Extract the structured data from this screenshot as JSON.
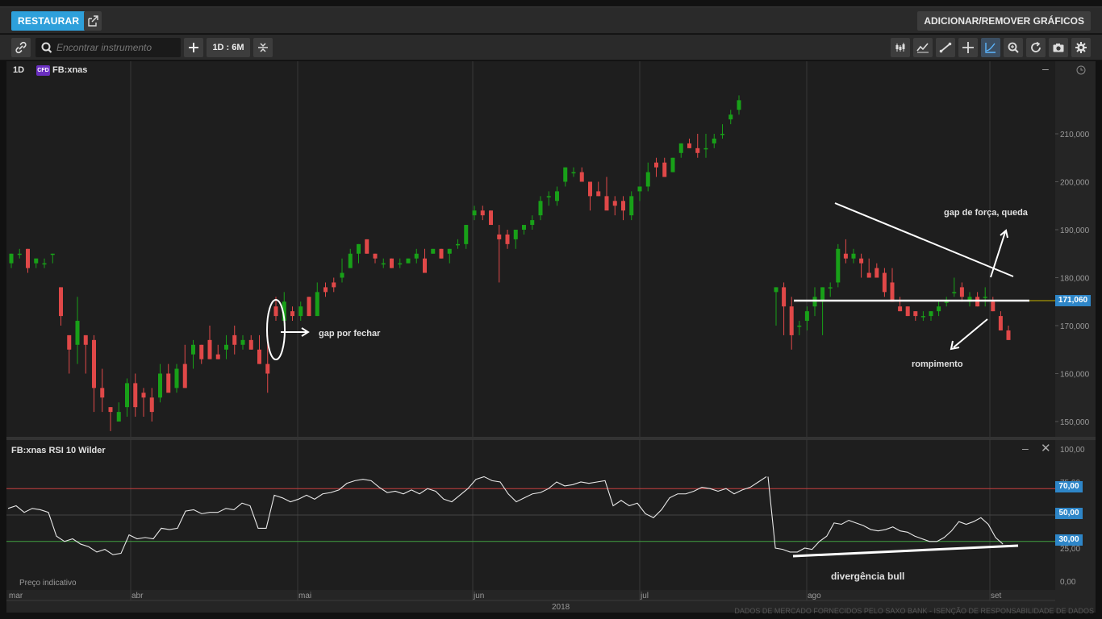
{
  "topbar": {
    "restore_label": "RESTAURAR",
    "add_remove_label": "ADICIONAR/REMOVER GRÁFICOS"
  },
  "toolbar": {
    "search_placeholder": "Encontrar instrumento",
    "period_label": "1D : 6M",
    "right_icons": [
      "candlestick-icon",
      "indicator-icon",
      "line-tool-icon",
      "crosshair-icon",
      "chart-type-icon",
      "zoom-icon",
      "refresh-icon",
      "camera-icon",
      "settings-icon"
    ]
  },
  "main_chart": {
    "interval": "1D",
    "badge": "CFD",
    "instrument": "FB:xnas",
    "price_ticks": [
      "210,000",
      "200,000",
      "190,000",
      "180,000",
      "170,000",
      "160,000",
      "150,000"
    ],
    "last_price": "171,060",
    "annotations": {
      "gap_open": "gap por fechar",
      "gap_strength": "gap de força, queda",
      "breakout": "rompimento"
    }
  },
  "rsi_panel": {
    "title": "FB:xnas  RSI 10 Wilder",
    "ticks": [
      "100,00",
      "75,00",
      "50,00",
      "25,00",
      "0,00"
    ],
    "level_high": "70,00",
    "level_mid": "50,00",
    "level_low": "30,00",
    "annotation": "divergência bull",
    "note": "Preço indicativo"
  },
  "x_axis": {
    "months": [
      "mar",
      "abr",
      "mai",
      "jun",
      "jul",
      "ago",
      "set"
    ],
    "year": "2018"
  },
  "footer": "DADOS DE MERCADO FORNECIDOS PELO SAXO BANK - ISENÇÃO DE RESPONSABILIDADE DE DADOS",
  "colors": {
    "up": "#18a018",
    "down": "#e04848",
    "accent": "#2ea0db",
    "rsi_high": "#c84040",
    "rsi_low": "#40a040"
  }
}
